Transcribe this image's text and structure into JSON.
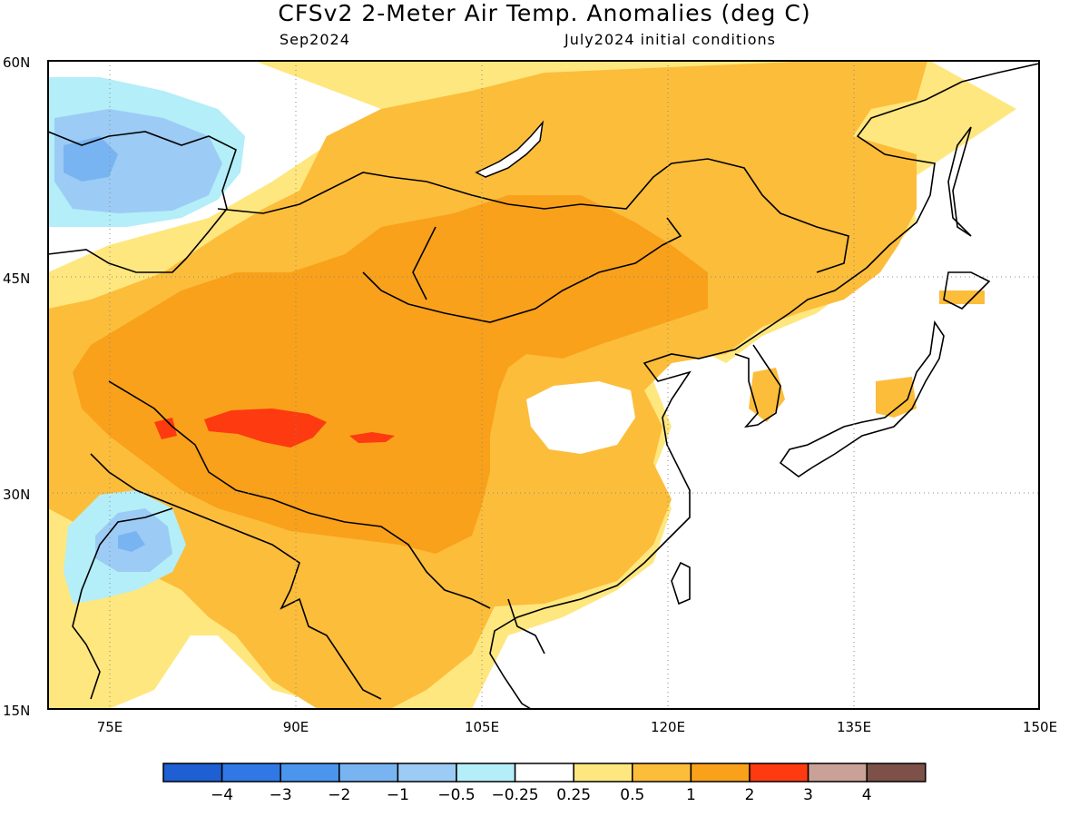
{
  "header": {
    "title": "CFSv2 2-Meter Air Temp. Anomalies (deg C)",
    "valid_month": "Sep2024",
    "init_conditions": "July2024 initial conditions"
  },
  "map": {
    "lon_range": [
      70,
      150
    ],
    "lat_range": [
      15,
      60
    ],
    "lon_ticks": [
      "75E",
      "90E",
      "105E",
      "120E",
      "135E",
      "150E"
    ],
    "lat_ticks": [
      "15N",
      "30N",
      "45N",
      "60N"
    ],
    "grid": "dotted",
    "colors": {
      "neg4": "#1e5fd3",
      "neg3": "#2f78e6",
      "neg2": "#4a95ee",
      "neg1": "#79b4f2",
      "neg05": "#9ccbf5",
      "neg025": "#b4eef8",
      "neutral": "#ffffff",
      "pos025": "#ffe77f",
      "pos05": "#fcbd3b",
      "pos1": "#f9a11a",
      "pos2": "#fd3a10",
      "pos3": "#c9a196",
      "pos4": "#7d5147"
    }
  },
  "colorbar": {
    "tick_labels": [
      "-4",
      "-3",
      "-2",
      "-1",
      "-0.5",
      "-0.25",
      "0.25",
      "0.5",
      "1",
      "2",
      "3",
      "4"
    ],
    "colors": [
      "#1e5fd3",
      "#2f78e6",
      "#4a95ee",
      "#79b4f2",
      "#9ccbf5",
      "#b4eef8",
      "#ffffff",
      "#ffe77f",
      "#fcbd3b",
      "#f9a11a",
      "#fd3a10",
      "#c9a196",
      "#7d5147"
    ]
  }
}
